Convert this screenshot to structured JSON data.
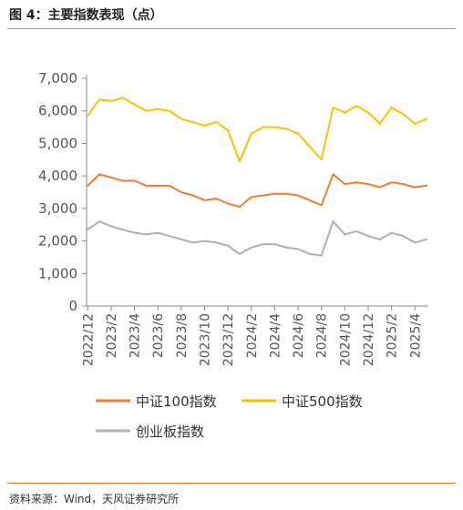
{
  "header": {
    "title": "图 4：主要指数表现（点）"
  },
  "footer": {
    "source": "资料来源：Wind，天风证券研究所"
  },
  "chart_data": {
    "type": "line",
    "title": "",
    "xlabel": "",
    "ylabel": "",
    "ylim": [
      0,
      7000
    ],
    "yticks": [
      "0",
      "1,000",
      "2,000",
      "3,000",
      "4,000",
      "5,000",
      "6,000",
      "7,000"
    ],
    "xticks": [
      "2022/12",
      "2023/2",
      "2023/4",
      "2023/6",
      "2023/8",
      "2023/10",
      "2023/12",
      "2024/2",
      "2024/4",
      "2024/6",
      "2024/8",
      "2024/10",
      "2024/12",
      "2025/2",
      "2025/4"
    ],
    "grid": false,
    "legend_position": "bottom",
    "series": [
      {
        "name": "中证100指数",
        "color": "#ED7D31",
        "x": [
          "2022/12",
          "2023/1",
          "2023/2",
          "2023/3",
          "2023/4",
          "2023/5",
          "2023/6",
          "2023/7",
          "2023/8",
          "2023/9",
          "2023/10",
          "2023/11",
          "2023/12",
          "2024/1",
          "2024/2",
          "2024/3",
          "2024/4",
          "2024/5",
          "2024/6",
          "2024/7",
          "2024/8",
          "2024/9",
          "2024/10",
          "2024/11",
          "2024/12",
          "2025/1",
          "2025/2",
          "2025/3",
          "2025/4",
          "2025/5"
        ],
        "values": [
          3700,
          4050,
          3950,
          3850,
          3850,
          3700,
          3700,
          3700,
          3500,
          3400,
          3250,
          3300,
          3150,
          3050,
          3350,
          3400,
          3450,
          3450,
          3400,
          3250,
          3100,
          4050,
          3750,
          3800,
          3750,
          3650,
          3800,
          3750,
          3650,
          3700
        ]
      },
      {
        "name": "中证500指数",
        "color": "#FFC000",
        "x": [
          "2022/12",
          "2023/1",
          "2023/2",
          "2023/3",
          "2023/4",
          "2023/5",
          "2023/6",
          "2023/7",
          "2023/8",
          "2023/9",
          "2023/10",
          "2023/11",
          "2023/12",
          "2024/1",
          "2024/2",
          "2024/3",
          "2024/4",
          "2024/5",
          "2024/6",
          "2024/7",
          "2024/8",
          "2024/9",
          "2024/10",
          "2024/11",
          "2024/12",
          "2025/1",
          "2025/2",
          "2025/3",
          "2025/4",
          "2025/5"
        ],
        "values": [
          5850,
          6350,
          6300,
          6400,
          6200,
          6000,
          6050,
          6000,
          5750,
          5650,
          5550,
          5650,
          5400,
          4450,
          5300,
          5500,
          5500,
          5450,
          5300,
          4900,
          4500,
          6100,
          5950,
          6150,
          5950,
          5600,
          6100,
          5900,
          5600,
          5750
        ]
      },
      {
        "name": "创业板指数",
        "color": "#B0B0B0",
        "x": [
          "2022/12",
          "2023/1",
          "2023/2",
          "2023/3",
          "2023/4",
          "2023/5",
          "2023/6",
          "2023/7",
          "2023/8",
          "2023/9",
          "2023/10",
          "2023/11",
          "2023/12",
          "2024/1",
          "2024/2",
          "2024/3",
          "2024/4",
          "2024/5",
          "2024/6",
          "2024/7",
          "2024/8",
          "2024/9",
          "2024/10",
          "2024/11",
          "2024/12",
          "2025/1",
          "2025/2",
          "2025/3",
          "2025/4",
          "2025/5"
        ],
        "values": [
          2350,
          2600,
          2450,
          2350,
          2250,
          2200,
          2250,
          2150,
          2050,
          1950,
          2000,
          1950,
          1850,
          1600,
          1800,
          1900,
          1900,
          1800,
          1750,
          1600,
          1550,
          2600,
          2200,
          2300,
          2150,
          2050,
          2250,
          2150,
          1950,
          2050
        ]
      }
    ]
  }
}
